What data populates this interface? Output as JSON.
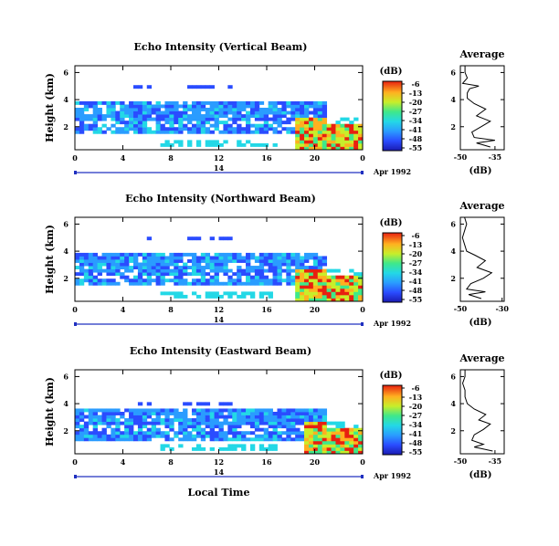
{
  "chart_data": [
    {
      "type": "heatmap",
      "title": "Echo Intensity (Vertical Beam)",
      "ylabel": "Height (km)",
      "x_ticks": [
        "0",
        "4",
        "8",
        "12",
        "16",
        "20",
        "0"
      ],
      "y_ticks": [
        "2",
        "4",
        "6"
      ],
      "xlim": [
        0,
        24
      ],
      "ylim": [
        0.3,
        6.5
      ],
      "date_bar": {
        "label": "14",
        "right_label": "Apr 1992"
      },
      "colorbar": {
        "unit": "(dB)",
        "ticks": [
          "-6",
          "-13",
          "-20",
          "-27",
          "-34",
          "-41",
          "-48",
          "-55"
        ]
      },
      "features": {
        "cloud_base_km": 1.5,
        "cloud_top_km": 3.8,
        "upper_patch_km": 4.9,
        "strong_echo_start_h": 18.5
      },
      "average_panel": {
        "title": "Average",
        "xlabel": "(dB)",
        "x_ticks": [
          "-50",
          "-35"
        ],
        "xlim": [
          -50,
          -31
        ],
        "y_ticks": [
          "2",
          "4",
          "6"
        ],
        "profile": [
          [
            -37,
            0.5
          ],
          [
            -43,
            0.8
          ],
          [
            -35,
            1.0
          ],
          [
            -44,
            1.2
          ],
          [
            -45,
            1.6
          ],
          [
            -41,
            2.0
          ],
          [
            -37,
            2.4
          ],
          [
            -43,
            2.8
          ],
          [
            -39,
            3.3
          ],
          [
            -44,
            3.7
          ],
          [
            -47,
            4.1
          ],
          [
            -47,
            4.5
          ],
          [
            -46,
            4.8
          ],
          [
            -42,
            5.0
          ],
          [
            -49,
            5.2
          ],
          [
            -47,
            5.6
          ],
          [
            -48,
            6.0
          ],
          [
            -48,
            6.5
          ]
        ]
      }
    },
    {
      "type": "heatmap",
      "title": "Echo Intensity (Northward Beam)",
      "ylabel": "Height (km)",
      "x_ticks": [
        "0",
        "4",
        "8",
        "12",
        "16",
        "20",
        "0"
      ],
      "y_ticks": [
        "2",
        "4",
        "6"
      ],
      "xlim": [
        0,
        24
      ],
      "ylim": [
        0.3,
        6.5
      ],
      "date_bar": {
        "label": "14",
        "right_label": "Apr 1992"
      },
      "colorbar": {
        "unit": "(dB)",
        "ticks": [
          "-6",
          "-13",
          "-20",
          "-27",
          "-34",
          "-41",
          "-48",
          "-55"
        ]
      },
      "features": {
        "cloud_base_km": 1.5,
        "cloud_top_km": 3.8,
        "upper_patch_km": 5.0,
        "strong_echo_start_h": 18.5
      },
      "average_panel": {
        "title": "Average",
        "xlabel": "(dB)",
        "x_ticks": [
          "-50",
          "-30"
        ],
        "xlim": [
          -50,
          -29
        ],
        "y_ticks": [
          "2",
          "4",
          "6"
        ],
        "profile": [
          [
            -40,
            0.5
          ],
          [
            -46,
            0.8
          ],
          [
            -38,
            1.0
          ],
          [
            -47,
            1.2
          ],
          [
            -45,
            1.6
          ],
          [
            -39,
            2.0
          ],
          [
            -35,
            2.4
          ],
          [
            -42,
            2.8
          ],
          [
            -38,
            3.3
          ],
          [
            -43,
            3.7
          ],
          [
            -47,
            4.0
          ],
          [
            -48,
            4.5
          ],
          [
            -49,
            5.0
          ],
          [
            -48,
            5.5
          ],
          [
            -47,
            6.0
          ],
          [
            -48,
            6.5
          ]
        ]
      }
    },
    {
      "type": "heatmap",
      "title": "Echo Intensity (Eastward Beam)",
      "ylabel": "Height (km)",
      "xlabel": "Local Time",
      "x_ticks": [
        "0",
        "4",
        "8",
        "12",
        "16",
        "20",
        "0"
      ],
      "y_ticks": [
        "2",
        "4",
        "6"
      ],
      "xlim": [
        0,
        24
      ],
      "ylim": [
        0.3,
        6.5
      ],
      "date_bar": {
        "label": "14",
        "right_label": "Apr 1992"
      },
      "colorbar": {
        "unit": "(dB)",
        "ticks": [
          "-6",
          "-13",
          "-20",
          "-27",
          "-34",
          "-41",
          "-48",
          "-55"
        ]
      },
      "features": {
        "cloud_base_km": 1.2,
        "cloud_top_km": 3.7,
        "upper_patch_km": 4.0,
        "strong_echo_start_h": 19.0
      },
      "average_panel": {
        "title": "Average",
        "xlabel": "(dB)",
        "x_ticks": [
          "-50",
          "-35"
        ],
        "xlim": [
          -50,
          -31
        ],
        "y_ticks": [
          "2",
          "4",
          "6"
        ],
        "profile": [
          [
            -36,
            0.5
          ],
          [
            -44,
            0.8
          ],
          [
            -40,
            1.0
          ],
          [
            -45,
            1.3
          ],
          [
            -44,
            1.7
          ],
          [
            -40,
            2.1
          ],
          [
            -37,
            2.5
          ],
          [
            -42,
            2.8
          ],
          [
            -39,
            3.2
          ],
          [
            -44,
            3.6
          ],
          [
            -47,
            4.0
          ],
          [
            -48,
            4.5
          ],
          [
            -48,
            5.0
          ],
          [
            -49,
            5.5
          ],
          [
            -48,
            6.0
          ],
          [
            -48,
            6.5
          ]
        ]
      }
    }
  ]
}
